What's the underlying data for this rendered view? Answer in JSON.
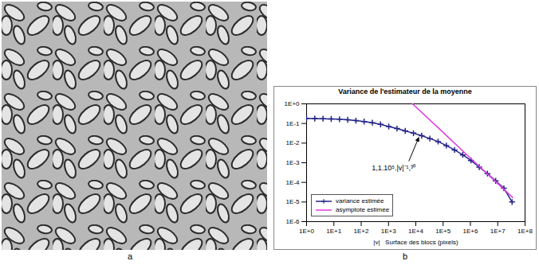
{
  "image": {
    "label": "a"
  },
  "chart_data": {
    "type": "line",
    "panel_label": "b",
    "title": "Variance de l'estimateur de la moyenne",
    "xlabel": "|v|   Surface des blocs (pixels)",
    "log": true,
    "grid": false,
    "legend": "lower left",
    "xlim": [
      1,
      100000000
    ],
    "ylim": [
      1e-06,
      1
    ],
    "xticks": [
      {
        "value": 1,
        "label": "1E+0"
      },
      {
        "value": 10,
        "label": "1E+1"
      },
      {
        "value": 100,
        "label": "1E+2"
      },
      {
        "value": 1000,
        "label": "1E+3"
      },
      {
        "value": 10000,
        "label": "1E+4"
      },
      {
        "value": 100000,
        "label": "1E+5"
      },
      {
        "value": 1000000,
        "label": "1E+6"
      },
      {
        "value": 10000000,
        "label": "1E+7"
      },
      {
        "value": 100000000,
        "label": "1E+8"
      }
    ],
    "yticks": [
      {
        "value": 1e-06,
        "label": "1E-6"
      },
      {
        "value": 1e-05,
        "label": "1E-5"
      },
      {
        "value": 0.0001,
        "label": "1E-4"
      },
      {
        "value": 0.001,
        "label": "1E-3"
      },
      {
        "value": 0.01,
        "label": "1E-2"
      },
      {
        "value": 0.1,
        "label": "1E-1"
      },
      {
        "value": 1,
        "label": "1E+0"
      }
    ],
    "series": [
      {
        "name": "variance estimée",
        "color": "#24248a",
        "marker": "plus",
        "x": [
          1,
          2,
          4,
          8,
          16,
          32,
          64,
          128,
          256,
          512,
          1024,
          2048,
          4096,
          8192,
          16384,
          32768,
          65536,
          131072,
          262144,
          524288,
          1048576,
          2097152,
          4194304,
          8388608,
          16777216,
          33554432
        ],
        "values": [
          0.18,
          0.178,
          0.175,
          0.17,
          0.165,
          0.155,
          0.14,
          0.125,
          0.11,
          0.09,
          0.07,
          0.055,
          0.042,
          0.032,
          0.024,
          0.017,
          0.012,
          0.0075,
          0.0045,
          0.0025,
          0.0013,
          0.0006,
          0.00028,
          0.00012,
          5e-05,
          1e-05
        ]
      },
      {
        "name": "asymptote estimée",
        "color": "#e03ce0",
        "x": [
          7600,
          100000,
          1000000,
          10000000,
          35000000
        ],
        "values": [
          1.0,
          0.035,
          0.0017,
          8.7e-05,
          1.7e-05
        ]
      }
    ],
    "annotations": [
      {
        "text": "1,1.10⁵.|v|⁻¹,³⁰"
      }
    ]
  }
}
